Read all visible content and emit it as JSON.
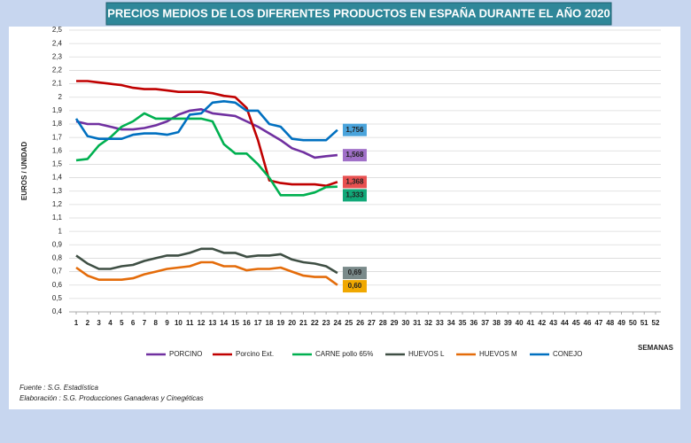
{
  "chart_data": {
    "type": "line",
    "title": "PRECIOS MEDIOS DE LOS DIFERENTES PRODUCTOS EN ESPAÑA DURANTE EL AÑO 2020",
    "ylabel": "EUROS / UNIDAD",
    "xlabel": "SEMANAS",
    "notes": [
      "Fuente : S.G. Estadística",
      "Elaboración : S.G. Producciones Ganaderas y Cinegéticas"
    ],
    "x": [
      1,
      2,
      3,
      4,
      5,
      6,
      7,
      8,
      9,
      10,
      11,
      12,
      13,
      14,
      15,
      16,
      17,
      18,
      19,
      20,
      21,
      22,
      23,
      24
    ],
    "xlim": [
      1,
      52
    ],
    "xticks": [
      1,
      2,
      3,
      4,
      5,
      6,
      7,
      8,
      9,
      10,
      11,
      12,
      13,
      14,
      15,
      16,
      17,
      18,
      19,
      20,
      21,
      22,
      23,
      24,
      25,
      26,
      27,
      28,
      29,
      30,
      31,
      32,
      33,
      34,
      35,
      36,
      37,
      38,
      39,
      40,
      41,
      42,
      43,
      44,
      45,
      46,
      47,
      48,
      49,
      50,
      51,
      52
    ],
    "ylim": [
      0.4,
      2.5
    ],
    "yticks": [
      {
        "value": 0.4,
        "label": "0,4"
      },
      {
        "value": 0.5,
        "label": "0,5"
      },
      {
        "value": 0.6,
        "label": "0,6"
      },
      {
        "value": 0.7,
        "label": "0,7"
      },
      {
        "value": 0.8,
        "label": "0,8"
      },
      {
        "value": 0.9,
        "label": "0,9"
      },
      1,
      {
        "value": 1.1,
        "label": "1,1"
      },
      {
        "value": 1.2,
        "label": "1,2"
      },
      {
        "value": 1.3,
        "label": "1,3"
      },
      {
        "value": 1.4,
        "label": "1,4"
      },
      {
        "value": 1.5,
        "label": "1,5"
      },
      {
        "value": 1.6,
        "label": "1,6"
      },
      {
        "value": 1.7,
        "label": "1,7"
      },
      {
        "value": 1.8,
        "label": "1,8"
      },
      {
        "value": 1.9,
        "label": "1,9"
      },
      2,
      {
        "value": 2.1,
        "label": "2,1"
      },
      {
        "value": 2.2,
        "label": "2,2"
      },
      {
        "value": 2.3,
        "label": "2,3"
      },
      {
        "value": 2.4,
        "label": "2,4"
      },
      {
        "value": 2.5,
        "label": "2,5"
      }
    ],
    "grid": true,
    "legend": "bottom",
    "series": [
      {
        "name": "PORCINO",
        "color": "#7030a0",
        "label_color": "#a070c8",
        "values": [
          1.82,
          1.8,
          1.8,
          1.78,
          1.76,
          1.76,
          1.77,
          1.79,
          1.82,
          1.87,
          1.9,
          1.91,
          1.88,
          1.87,
          1.86,
          1.82,
          1.78,
          1.73,
          1.68,
          1.62,
          1.59,
          1.55,
          1.56,
          1.568
        ],
        "value_labels": [
          null,
          null,
          null,
          null,
          null,
          null,
          null,
          null,
          null,
          null,
          null,
          null,
          null,
          null,
          null,
          null,
          null,
          null,
          null,
          null,
          null,
          null,
          null,
          "1,568"
        ]
      },
      {
        "name": "Porcino Ext.",
        "color": "#c00000",
        "label_color": "#e85050",
        "values": [
          2.12,
          2.12,
          2.11,
          2.1,
          2.09,
          2.07,
          2.06,
          2.06,
          2.05,
          2.04,
          2.04,
          2.04,
          2.03,
          2.01,
          2.0,
          1.92,
          1.68,
          1.38,
          1.36,
          1.35,
          1.35,
          1.35,
          1.34,
          1.368
        ],
        "value_labels": [
          null,
          null,
          null,
          null,
          null,
          null,
          null,
          null,
          null,
          null,
          null,
          null,
          null,
          null,
          null,
          null,
          null,
          null,
          null,
          null,
          null,
          null,
          null,
          "1,368"
        ]
      },
      {
        "name": "CARNE pollo 65%",
        "color": "#00b050",
        "label_color": "#10a878",
        "values": [
          1.53,
          1.54,
          1.64,
          1.7,
          1.78,
          1.82,
          1.88,
          1.84,
          1.84,
          1.84,
          1.84,
          1.84,
          1.82,
          1.65,
          1.58,
          1.58,
          1.5,
          1.4,
          1.27,
          1.27,
          1.27,
          1.29,
          1.33,
          1.333
        ],
        "value_labels": [
          null,
          null,
          null,
          null,
          null,
          null,
          null,
          null,
          null,
          null,
          null,
          null,
          null,
          null,
          null,
          null,
          null,
          null,
          null,
          null,
          null,
          null,
          null,
          "1,333"
        ]
      },
      {
        "name": "HUEVOS L",
        "color": "#3f4f44",
        "label_color": "#7a8a8a",
        "values": [
          0.82,
          0.76,
          0.72,
          0.72,
          0.74,
          0.75,
          0.78,
          0.8,
          0.82,
          0.82,
          0.84,
          0.87,
          0.87,
          0.84,
          0.84,
          0.81,
          0.82,
          0.82,
          0.83,
          0.79,
          0.77,
          0.76,
          0.74,
          0.69
        ],
        "value_labels": [
          null,
          null,
          null,
          null,
          null,
          null,
          null,
          null,
          null,
          null,
          null,
          null,
          null,
          null,
          null,
          null,
          null,
          null,
          null,
          null,
          null,
          null,
          null,
          "0,69"
        ]
      },
      {
        "name": "HUEVOS M",
        "color": "#e46c0a",
        "label_color": "#f0a800",
        "values": [
          0.73,
          0.67,
          0.64,
          0.64,
          0.64,
          0.65,
          0.68,
          0.7,
          0.72,
          0.73,
          0.74,
          0.77,
          0.77,
          0.74,
          0.74,
          0.71,
          0.72,
          0.72,
          0.73,
          0.7,
          0.67,
          0.66,
          0.66,
          0.6
        ],
        "value_labels": [
          null,
          null,
          null,
          null,
          null,
          null,
          null,
          null,
          null,
          null,
          null,
          null,
          null,
          null,
          null,
          null,
          null,
          null,
          null,
          null,
          null,
          null,
          null,
          "0,60"
        ]
      },
      {
        "name": "CONEJO",
        "color": "#0070c0",
        "label_color": "#4aa4dc",
        "values": [
          1.84,
          1.71,
          1.69,
          1.69,
          1.69,
          1.72,
          1.73,
          1.73,
          1.72,
          1.74,
          1.87,
          1.88,
          1.96,
          1.97,
          1.96,
          1.9,
          1.9,
          1.8,
          1.78,
          1.69,
          1.68,
          1.68,
          1.68,
          1.756
        ],
        "value_labels": [
          null,
          null,
          null,
          null,
          null,
          null,
          null,
          null,
          null,
          null,
          null,
          null,
          null,
          null,
          null,
          null,
          null,
          null,
          null,
          null,
          null,
          null,
          null,
          "1,756"
        ]
      }
    ]
  }
}
